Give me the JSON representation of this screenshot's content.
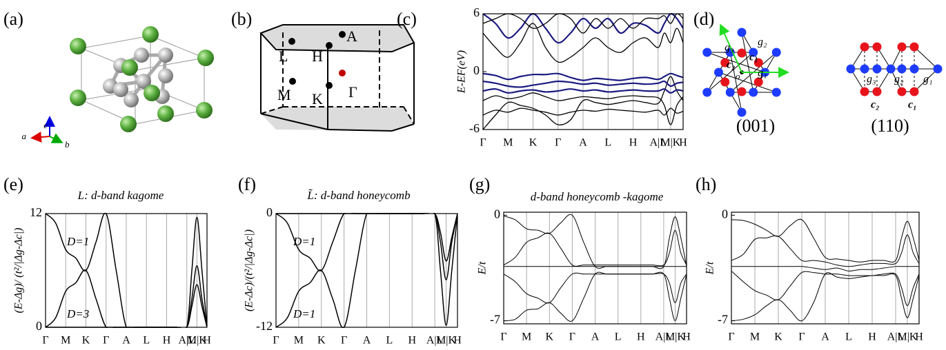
{
  "diagrams": {
    "a": {
      "label": "(a)",
      "axes": [
        "c",
        "a",
        "b"
      ]
    },
    "b": {
      "label": "(b)",
      "points": [
        "L",
        "H",
        "A",
        "M",
        "K",
        "Γ"
      ]
    },
    "d": {
      "label": "(d)",
      "top": {
        "caption": "(001)",
        "vectors": [
          "g₁",
          "g₂",
          "g₃"
        ],
        "sites": [
          "c₁",
          "c₂"
        ],
        "origin": "o"
      },
      "side": {
        "caption": "(110)",
        "vectors": [
          "g₃",
          "g₂",
          "g₁"
        ],
        "sites": [
          "c₂",
          "c₁"
        ]
      }
    }
  },
  "chart_data": [
    {
      "type": "line",
      "label": "(c)",
      "ylabel": "E-EF(eV)",
      "x": [
        0,
        0.5,
        1,
        1.5,
        2,
        2.5,
        3,
        3.5,
        4,
        4.5,
        5,
        5.5,
        6,
        6.5,
        7,
        7.25,
        7.5,
        7.75,
        8
      ],
      "xticks": [
        {
          "value": 0,
          "label": "Γ"
        },
        {
          "value": 1,
          "label": "M"
        },
        {
          "value": 2,
          "label": "K"
        },
        {
          "value": 3,
          "label": "Γ"
        },
        {
          "value": 4,
          "label": "A"
        },
        {
          "value": 5,
          "label": "L"
        },
        {
          "value": 6,
          "label": "H"
        },
        {
          "value": 7,
          "label": "A|L"
        },
        {
          "value": 7.5,
          "label": "M|K"
        },
        {
          "value": 8,
          "label": "H"
        }
      ],
      "xlim": [
        0,
        8
      ],
      "ylim": [
        -6,
        6
      ],
      "yticks": [
        6,
        0,
        -6
      ],
      "grid": "x",
      "series": [
        {
          "color": "#000000",
          "values": [
            -6,
            -4.5,
            -3.2,
            -3.5,
            -3.8,
            -4.5,
            -5.5,
            -5,
            -3,
            -3.2,
            -3.4,
            -3.2,
            -3,
            -3.2,
            -3.3,
            -2,
            -0.5,
            -2,
            -3
          ]
        },
        {
          "color": "#000000",
          "values": [
            -3,
            -2.5,
            -2.8,
            -2.6,
            -2.2,
            -2.6,
            -3,
            -2.8,
            -2.6,
            -2.7,
            -2.8,
            -2.6,
            -2.5,
            -2.6,
            -2.7,
            -3.5,
            -5.5,
            -3.5,
            -2.6
          ]
        },
        {
          "color": "#1a1a80",
          "values": [
            -1,
            -1.2,
            -1.5,
            -1.6,
            -1.4,
            -1.2,
            -1,
            -1.1,
            -1.3,
            -1.2,
            -1.4,
            -1.3,
            -1.2,
            -1.3,
            -1.2,
            -1,
            -1.5,
            -1.2,
            -1.1
          ]
        },
        {
          "color": "#1a1a80",
          "values": [
            -0.2,
            -0.4,
            -0.8,
            -0.5,
            -0.3,
            -0.3,
            -0.2,
            -0.6,
            -0.9,
            -0.7,
            -0.8,
            -0.9,
            -0.7,
            -0.6,
            -0.8,
            -0.5,
            -0.2,
            -0.4,
            -0.6
          ]
        },
        {
          "color": "#1a1a80",
          "values": [
            -2,
            -1.8,
            -2.2,
            -2,
            -1.9,
            -2.1,
            -2,
            -1.8,
            -2,
            -1.9,
            -2.1,
            -2,
            -1.9,
            -2,
            -2,
            -1.8,
            -2.2,
            -1.9,
            -2
          ]
        },
        {
          "color": "#000000",
          "values": [
            4,
            2.5,
            1.5,
            3,
            5,
            2.5,
            1,
            1.5,
            2.5,
            3.5,
            2.5,
            2,
            3,
            3.5,
            2.5,
            4,
            3,
            4.5,
            3
          ]
        },
        {
          "color": "#1a1a80",
          "values": [
            6,
            5,
            3.5,
            4.5,
            6,
            4.5,
            3,
            4,
            5.5,
            4.5,
            5.5,
            4,
            5,
            4.8,
            4,
            5,
            6,
            5.5,
            4.5
          ]
        },
        {
          "color": "#000000",
          "values": [
            5,
            5.5,
            6,
            5.5,
            4.5,
            5,
            6,
            5.5,
            4,
            5.5,
            4.5,
            5.5,
            4.5,
            5.5,
            5.5,
            5.8,
            5,
            6,
            5.5
          ]
        },
        {
          "color": "#000000",
          "values": [
            -4.5,
            -4,
            -4.2,
            -3.8,
            -4,
            -4.2,
            -4.5,
            -4.2,
            -4,
            -4.1,
            -3.9,
            -4,
            -4.1,
            -4.2,
            -4,
            -4.5,
            -3.8,
            -4.3,
            -4.1
          ]
        }
      ]
    },
    {
      "type": "line",
      "label": "(e)",
      "title": "L: d-band kagome",
      "ylabel": "(E-Δg)/ (t²/|Δg-Δc|)",
      "annotations": [
        "D=1",
        "D=3"
      ],
      "x": [
        0,
        0.5,
        1,
        1.5,
        2,
        2.5,
        3,
        3.5,
        4,
        4.5,
        5,
        5.5,
        6,
        6.5,
        7,
        7.25,
        7.5,
        7.75,
        8
      ],
      "xticks": [
        {
          "value": 0,
          "label": "Γ"
        },
        {
          "value": 1,
          "label": "M"
        },
        {
          "value": 2,
          "label": "K"
        },
        {
          "value": 3,
          "label": "Γ"
        },
        {
          "value": 4,
          "label": "A"
        },
        {
          "value": 5,
          "label": "L"
        },
        {
          "value": 6,
          "label": "H"
        },
        {
          "value": 7,
          "label": "A|L"
        },
        {
          "value": 7.5,
          "label": "M|K"
        },
        {
          "value": 8,
          "label": "H"
        }
      ],
      "xlim": [
        0,
        8
      ],
      "ylim": [
        0,
        12
      ],
      "yticks": [
        12,
        0
      ],
      "grid": "x",
      "series": [
        {
          "color": "#000000",
          "values": [
            12,
            11,
            8.2,
            7.3,
            6,
            9,
            12,
            6,
            0,
            0,
            0,
            0,
            0,
            0,
            0,
            6,
            11.6,
            6,
            0
          ]
        },
        {
          "color": "#000000",
          "values": [
            0,
            1,
            3.8,
            4.7,
            6,
            3,
            0,
            0,
            0,
            0,
            0,
            0,
            0,
            0,
            0,
            3,
            6.5,
            3,
            0
          ]
        },
        {
          "color": "#000000",
          "values": [
            0,
            0,
            0,
            0,
            0,
            0,
            0,
            0,
            0,
            0,
            0,
            0,
            0,
            0,
            0,
            2.2,
            4.5,
            2.2,
            0
          ]
        }
      ]
    },
    {
      "type": "line",
      "label": "(f)",
      "title": "L̃: d-band honeycomb",
      "ylabel": "(E-Δc)/(t²/|Δg-Δc|)",
      "annotations": [
        "D=1",
        "D=1"
      ],
      "x": [
        0,
        0.5,
        1,
        1.5,
        2,
        2.5,
        3,
        3.5,
        4,
        4.5,
        5,
        5.5,
        6,
        6.5,
        7,
        7.25,
        7.5,
        7.75,
        8
      ],
      "xticks": [
        {
          "value": 0,
          "label": "Γ"
        },
        {
          "value": 1,
          "label": "M"
        },
        {
          "value": 2,
          "label": "K"
        },
        {
          "value": 3,
          "label": "Γ"
        },
        {
          "value": 4,
          "label": "A"
        },
        {
          "value": 5,
          "label": "L"
        },
        {
          "value": 6,
          "label": "H"
        },
        {
          "value": 7,
          "label": "A|L"
        },
        {
          "value": 7.5,
          "label": "M|K"
        },
        {
          "value": 8,
          "label": "H"
        }
      ],
      "xlim": [
        0,
        8
      ],
      "ylim": [
        -12,
        0
      ],
      "yticks": [
        0,
        -12
      ],
      "grid": "x",
      "series": [
        {
          "color": "#000000",
          "values": [
            -12,
            -11,
            -8.2,
            -7.3,
            -6,
            -9,
            -12,
            -6,
            0,
            0,
            0,
            0,
            0,
            0,
            0,
            -6,
            -11.8,
            -6,
            0
          ]
        },
        {
          "color": "#000000",
          "values": [
            0,
            -1,
            -3.8,
            -4.7,
            -6,
            -3,
            0,
            0,
            0,
            0,
            0,
            0,
            0,
            0,
            0,
            -2,
            -5,
            -2.5,
            0
          ]
        },
        {
          "color": "#000000",
          "values": [
            0,
            0,
            0,
            0,
            0,
            0,
            0,
            0,
            0,
            0,
            0,
            0,
            0,
            0,
            0,
            -3,
            -7,
            -3,
            0
          ]
        }
      ]
    },
    {
      "type": "line",
      "label": "(g)",
      "title": "d-band honeycomb -kagome",
      "ylabel": "E/t",
      "x": [
        0,
        0.5,
        1,
        1.5,
        2,
        2.5,
        3,
        3.5,
        4,
        4.5,
        5,
        5.5,
        6,
        6.5,
        7,
        7.25,
        7.5,
        7.75,
        8
      ],
      "xticks": [
        {
          "value": 0,
          "label": "Γ"
        },
        {
          "value": 1,
          "label": "M"
        },
        {
          "value": 2,
          "label": "K"
        },
        {
          "value": 3,
          "label": "Γ"
        },
        {
          "value": 4,
          "label": "A"
        },
        {
          "value": 5,
          "label": "L"
        },
        {
          "value": 6,
          "label": "H"
        },
        {
          "value": 7,
          "label": "A|L"
        },
        {
          "value": 7.5,
          "label": "M|K"
        },
        {
          "value": 8,
          "label": "H"
        }
      ],
      "xlim": [
        0,
        8
      ],
      "ylim": [
        -7.2,
        0.2
      ],
      "yticks": [
        0,
        -7
      ],
      "grid": "x",
      "series": [
        {
          "color": "#000000",
          "values": [
            -0.05,
            -0.3,
            -0.9,
            -1,
            -1.2,
            -0.5,
            0,
            -1.8,
            -3.4,
            -3.4,
            -3.4,
            -3.4,
            -3.4,
            -3.4,
            -3.4,
            -1.5,
            -0.1,
            -1.5,
            -3.4
          ]
        },
        {
          "color": "#000000",
          "values": [
            -3.3,
            -2.8,
            -1.8,
            -1.5,
            -1.2,
            -2.2,
            -3.3,
            -3.3,
            -3.3,
            -3.3,
            -3.3,
            -3.3,
            -3.3,
            -3.3,
            -3.3,
            -2.5,
            -1,
            -2.5,
            -3.3
          ]
        },
        {
          "color": "#000000",
          "values": [
            -3.4,
            -3.4,
            -3.4,
            -3.4,
            -3.4,
            -3.4,
            -3.4,
            -3.4,
            -3.4,
            -3.4,
            -3.4,
            -3.4,
            -3.4,
            -3.4,
            -3.4,
            -3.4,
            -3.4,
            -3.4,
            -3.4
          ]
        },
        {
          "color": "#000000",
          "values": [
            -3.9,
            -4.4,
            -5.2,
            -5.5,
            -5.8,
            -4.8,
            -3.9,
            -3.9,
            -3.9,
            -3.9,
            -3.9,
            -3.9,
            -3.9,
            -3.9,
            -3.9,
            -4.5,
            -5.8,
            -4.5,
            -3.9
          ]
        },
        {
          "color": "#000000",
          "values": [
            -7,
            -6.9,
            -6.3,
            -6.2,
            -5.8,
            -6.5,
            -7,
            -5.5,
            -3.9,
            -3.9,
            -3.9,
            -3.9,
            -3.9,
            -3.9,
            -3.9,
            -5.5,
            -7,
            -5.5,
            -3.9
          ]
        }
      ]
    },
    {
      "type": "line",
      "label": "(h)",
      "ylabel": "E/t",
      "x": [
        0,
        0.5,
        1,
        1.5,
        2,
        2.5,
        3,
        3.5,
        4,
        4.5,
        5,
        5.5,
        6,
        6.5,
        7,
        7.25,
        7.5,
        7.75,
        8
      ],
      "xticks": [
        {
          "value": 0,
          "label": "Γ"
        },
        {
          "value": 1,
          "label": "M"
        },
        {
          "value": 2,
          "label": "K"
        },
        {
          "value": 3,
          "label": "Γ"
        },
        {
          "value": 4,
          "label": "A"
        },
        {
          "value": 5,
          "label": "L"
        },
        {
          "value": 6,
          "label": "H"
        },
        {
          "value": 7,
          "label": "A|L"
        },
        {
          "value": 7.5,
          "label": "M|K"
        },
        {
          "value": 8,
          "label": "H"
        }
      ],
      "xlim": [
        0,
        8
      ],
      "ylim": [
        -7.2,
        0.2
      ],
      "yticks": [
        0,
        -7
      ],
      "grid": "x",
      "series": [
        {
          "color": "#000000",
          "values": [
            -0.3,
            -0.35,
            -0.6,
            -1,
            -1.4,
            -0.7,
            -0.3,
            -1.5,
            -2.8,
            -2.9,
            -3,
            -3.1,
            -3,
            -3,
            -3,
            -1.5,
            -0.4,
            -1.5,
            -3
          ]
        },
        {
          "color": "#000000",
          "values": [
            -3,
            -2.6,
            -1.6,
            -1.5,
            -1.4,
            -2.2,
            -3,
            -3,
            -3.1,
            -3.3,
            -3.4,
            -3.3,
            -3.2,
            -3.2,
            -3.2,
            -2.5,
            -1.3,
            -2.5,
            -3.2
          ]
        },
        {
          "color": "#000000",
          "values": [
            -3.4,
            -3.4,
            -3.4,
            -3.4,
            -3.4,
            -3.4,
            -3.4,
            -3.5,
            -3.6,
            -3.5,
            -3.7,
            -3.6,
            -3.6,
            -3.5,
            -3.4,
            -3.4,
            -3.4,
            -3.4,
            -3.4
          ]
        },
        {
          "color": "#000000",
          "values": [
            -3.7,
            -4.4,
            -5,
            -5.3,
            -5.6,
            -4.7,
            -3.8,
            -3.8,
            -3.9,
            -3.9,
            -4,
            -4,
            -4,
            -3.9,
            -3.9,
            -4.8,
            -6,
            -4.8,
            -3.9
          ]
        },
        {
          "color": "#000000",
          "values": [
            -7,
            -6.9,
            -6.6,
            -6,
            -5.6,
            -6.3,
            -7,
            -5.8,
            -3.9,
            -4.1,
            -4.2,
            -4.1,
            -4,
            -4,
            -4,
            -5.5,
            -6.8,
            -5.5,
            -4
          ]
        }
      ]
    }
  ]
}
